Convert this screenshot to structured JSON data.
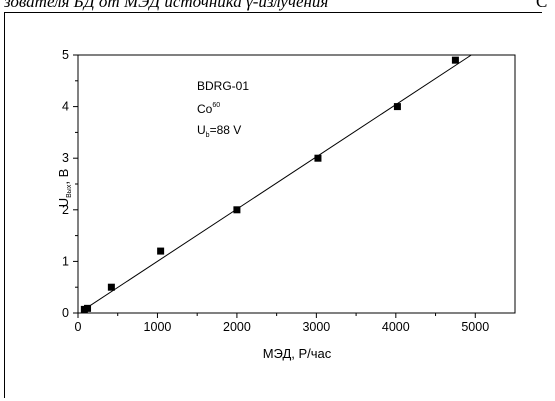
{
  "caption": {
    "text": "зователя БД от МЭД источника γ-излучения",
    "tail": "С"
  },
  "annotation": {
    "line1": "BDRG-01",
    "line2_base": "Co",
    "line2_sup": "60",
    "line3_base": "U",
    "line3_sub": "b",
    "line3_rest": "=88 V"
  },
  "chart_data": {
    "type": "scatter",
    "title": "",
    "xlabel": "МЭД, Р/час",
    "ylabel_base": "U",
    "ylabel_sub": "Вых",
    "ylabel_rest": ", В",
    "xlim": [
      0,
      5500
    ],
    "ylim": [
      0,
      5
    ],
    "xticks": [
      0,
      1000,
      2000,
      3000,
      4000,
      5000
    ],
    "yticks": [
      0,
      1,
      2,
      3,
      4,
      5
    ],
    "grid": false,
    "series": [
      {
        "points": [
          {
            "x": 80,
            "y": 0.07
          },
          {
            "x": 120,
            "y": 0.09
          },
          {
            "x": 420,
            "y": 0.5
          },
          {
            "x": 1040,
            "y": 1.2
          },
          {
            "x": 2000,
            "y": 2.0
          },
          {
            "x": 3020,
            "y": 3.0
          },
          {
            "x": 4020,
            "y": 4.0
          },
          {
            "x": 4750,
            "y": 4.9
          }
        ]
      }
    ],
    "fit_line": {
      "x": [
        60,
        4950
      ],
      "y": [
        0.05,
        5.0
      ]
    }
  }
}
